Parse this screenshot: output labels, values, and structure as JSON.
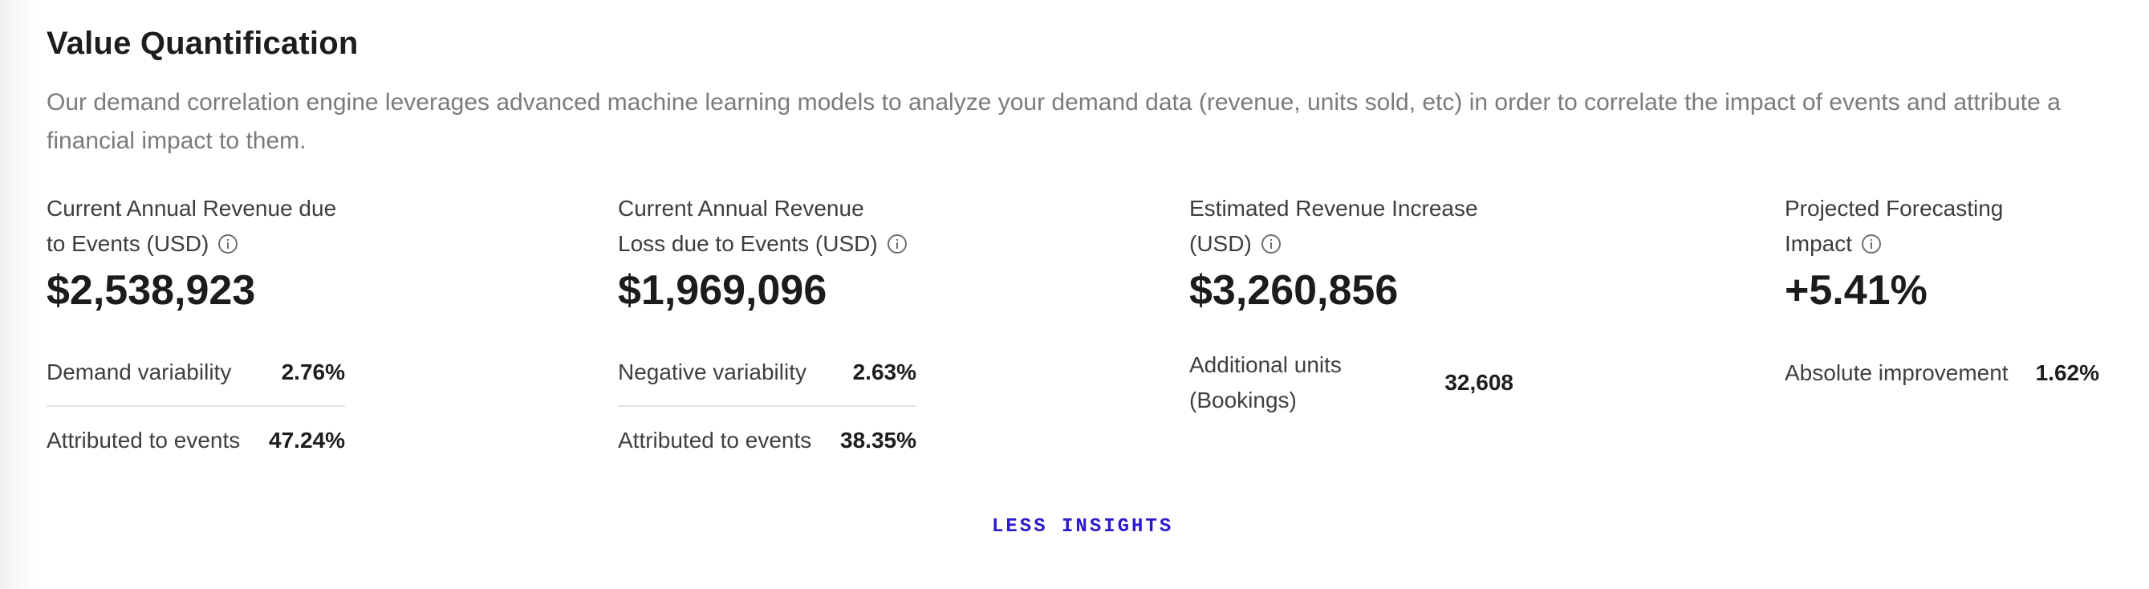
{
  "section": {
    "title": "Value Quantification",
    "description": "Our demand correlation engine leverages advanced machine learning models to analyze your demand data (revenue, units sold, etc) in order to correlate the impact of events and attribute a financial impact to them."
  },
  "metrics": [
    {
      "label_line1": "Current Annual Revenue due",
      "label_line2": "to Events (USD)",
      "value": "$2,538,923",
      "rows": [
        {
          "label": "Demand variability",
          "value": "2.76%"
        },
        {
          "label": "Attributed to events",
          "value": "47.24%"
        }
      ]
    },
    {
      "label_line1": "Current Annual Revenue",
      "label_line2": "Loss due to Events (USD)",
      "value": "$1,969,096",
      "rows": [
        {
          "label": "Negative variability",
          "value": "2.63%"
        },
        {
          "label": "Attributed to events",
          "value": "38.35%"
        }
      ]
    },
    {
      "label_line1": "Estimated Revenue Increase",
      "label_line2": "(USD)",
      "value": "$3,260,856",
      "rows": [
        {
          "label_line1": "Additional units",
          "label_line2": "(Bookings)",
          "value": "32,608"
        }
      ]
    },
    {
      "label_line1": "Projected Forecasting",
      "label_line2": "Impact",
      "value": "+5.41%",
      "rows": [
        {
          "label": "Absolute improvement",
          "value": "1.62%"
        }
      ]
    }
  ],
  "actions": {
    "toggle_label": "LESS INSIGHTS"
  },
  "icons": {
    "info": "info-circle-icon"
  },
  "colors": {
    "accent": "#2b1acb",
    "text_primary": "#1d1d1d",
    "text_muted": "#7b7b7b",
    "divider": "#e2e2e2"
  }
}
